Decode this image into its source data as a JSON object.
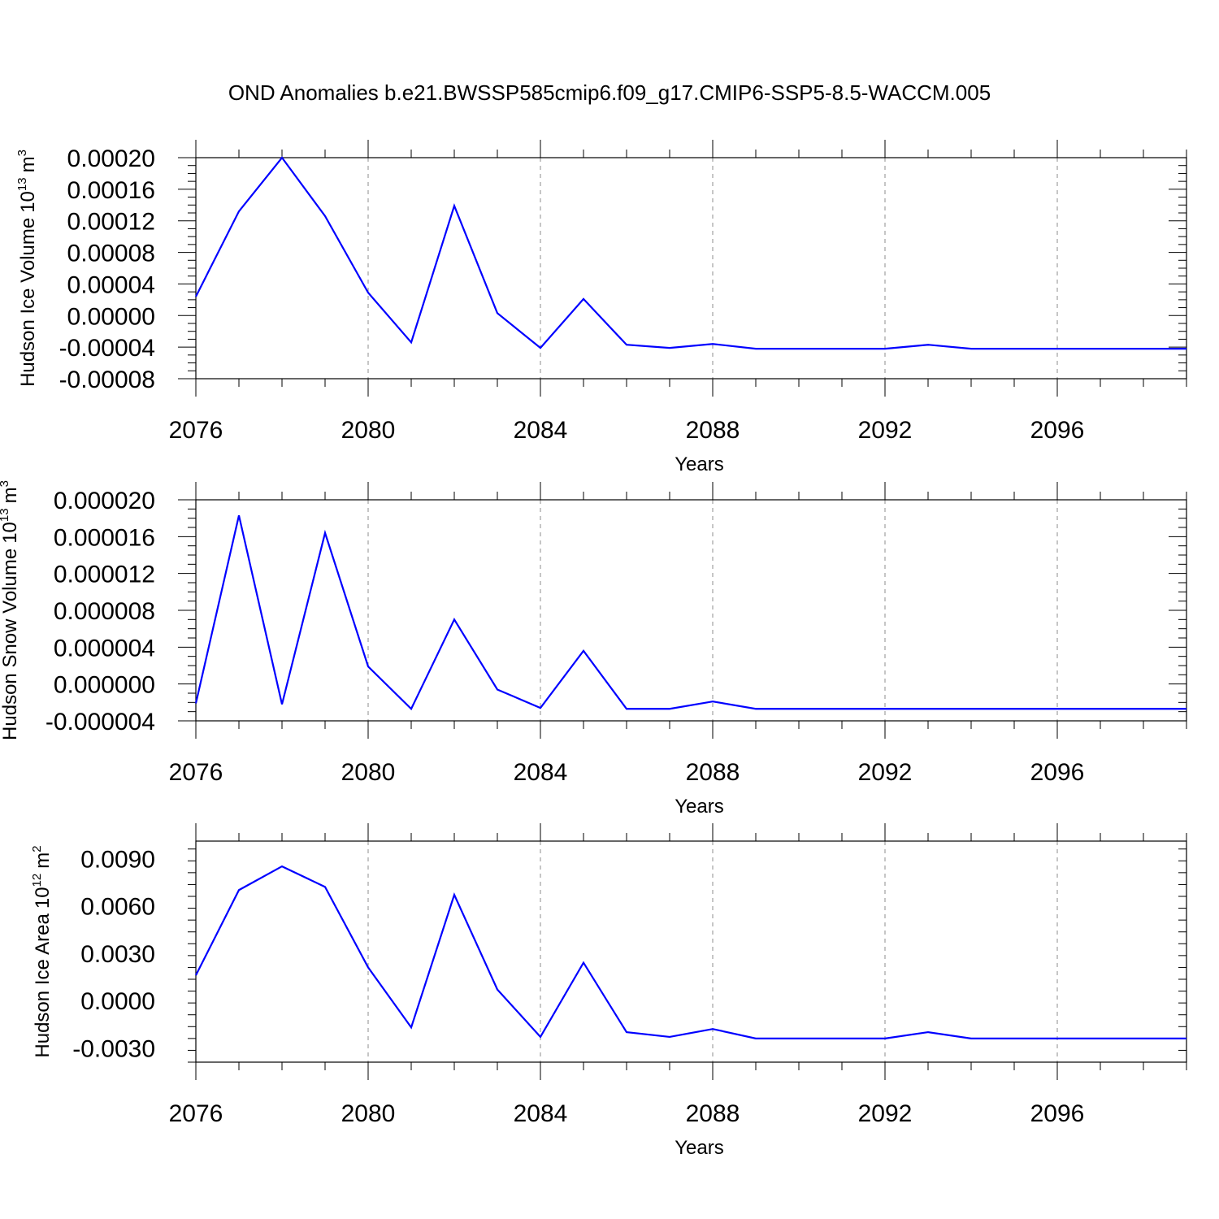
{
  "figure_title": "OND Anomalies b.e21.BWSSP585cmip6.f09_g17.CMIP6-SSP5-8.5-WACCM.005",
  "colors": {
    "line": "#0000ff",
    "frame": "#000000",
    "grid": "#8c8c8c"
  },
  "chart_data": [
    {
      "type": "line",
      "title": "",
      "xlabel": "Years",
      "ylabel": "Hudson Ice Volume",
      "ylabel_unit_base": "10",
      "ylabel_unit_exp": "13",
      "ylabel_unit_symbol": "m",
      "ylabel_unit_symbol_exp": "3",
      "xlim": [
        2076,
        2099
      ],
      "ylim": [
        -8e-05,
        0.0002
      ],
      "x_ticks": [
        2076,
        2080,
        2084,
        2088,
        2092,
        2096
      ],
      "x_tick_labels": [
        "2076",
        "2080",
        "2084",
        "2088",
        "2092",
        "2096"
      ],
      "y_ticks": [
        0.0002,
        0.00016,
        0.00012,
        8e-05,
        4e-05,
        0.0,
        -4e-05,
        -8e-05
      ],
      "y_tick_labels": [
        "0.00020",
        "0.00016",
        "0.00012",
        "0.00008",
        "0.00004",
        "0.00000",
        "-0.00004",
        "-0.00008"
      ],
      "grid": "vertical dashed at major x ticks",
      "series": [
        {
          "x": [
            2076,
            2077,
            2078,
            2079,
            2080,
            2081,
            2082,
            2083,
            2084,
            2085,
            2086,
            2087,
            2088,
            2089,
            2090,
            2091,
            2092,
            2093,
            2094,
            2095,
            2096,
            2097,
            2098,
            2099
          ],
          "values": [
            2.4e-05,
            0.000132,
            0.0002,
            0.000126,
            2.9e-05,
            -3.4e-05,
            0.000139,
            3e-06,
            -4.1e-05,
            2.1e-05,
            -3.7e-05,
            -4.1e-05,
            -3.6e-05,
            -4.2e-05,
            -4.2e-05,
            -4.2e-05,
            -4.2e-05,
            -3.7e-05,
            -4.2e-05,
            -4.2e-05,
            -4.2e-05,
            -4.2e-05,
            -4.2e-05,
            -4.2e-05
          ]
        }
      ]
    },
    {
      "type": "line",
      "title": "",
      "xlabel": "Years",
      "ylabel": "Hudson Snow Volume",
      "ylabel_unit_base": "10",
      "ylabel_unit_exp": "13",
      "ylabel_unit_symbol": "m",
      "ylabel_unit_symbol_exp": "3",
      "xlim": [
        2076,
        2099
      ],
      "ylim": [
        -4e-06,
        2e-05
      ],
      "x_ticks": [
        2076,
        2080,
        2084,
        2088,
        2092,
        2096
      ],
      "x_tick_labels": [
        "2076",
        "2080",
        "2084",
        "2088",
        "2092",
        "2096"
      ],
      "y_ticks": [
        2e-05,
        1.6e-05,
        1.2e-05,
        8e-06,
        4e-06,
        0.0,
        -4e-06
      ],
      "y_tick_labels": [
        "0.000020",
        "0.000016",
        "0.000012",
        "0.000008",
        "0.000004",
        "0.000000",
        "-0.000004"
      ],
      "grid": "vertical dashed at major x ticks",
      "series": [
        {
          "x": [
            2076,
            2077,
            2078,
            2079,
            2080,
            2081,
            2082,
            2083,
            2084,
            2085,
            2086,
            2087,
            2088,
            2089,
            2090,
            2091,
            2092,
            2093,
            2094,
            2095,
            2096,
            2097,
            2098,
            2099
          ],
          "values": [
            -2.1e-06,
            1.83e-05,
            -2.2e-06,
            1.64e-05,
            1.9e-06,
            -2.7e-06,
            7e-06,
            -6e-07,
            -2.6e-06,
            3.6e-06,
            -2.7e-06,
            -2.7e-06,
            -1.9e-06,
            -2.7e-06,
            -2.7e-06,
            -2.7e-06,
            -2.7e-06,
            -2.7e-06,
            -2.7e-06,
            -2.7e-06,
            -2.7e-06,
            -2.7e-06,
            -2.7e-06,
            -2.7e-06
          ]
        }
      ]
    },
    {
      "type": "line",
      "title": "",
      "xlabel": "Years",
      "ylabel": "Hudson Ice Area",
      "ylabel_unit_base": "10",
      "ylabel_unit_exp": "12",
      "ylabel_unit_symbol": "m",
      "ylabel_unit_symbol_exp": "2",
      "xlim": [
        2076,
        2099
      ],
      "ylim": [
        -0.0039,
        0.0101
      ],
      "x_ticks": [
        2076,
        2080,
        2084,
        2088,
        2092,
        2096
      ],
      "x_tick_labels": [
        "2076",
        "2080",
        "2084",
        "2088",
        "2092",
        "2096"
      ],
      "y_ticks": [
        0.009,
        0.006,
        0.003,
        0.0,
        -0.003
      ],
      "y_tick_labels": [
        "0.0090",
        "0.0060",
        "0.0030",
        "0.0000",
        "-0.0030"
      ],
      "grid": "vertical dashed at major x ticks",
      "series": [
        {
          "x": [
            2076,
            2077,
            2078,
            2079,
            2080,
            2081,
            2082,
            2083,
            2084,
            2085,
            2086,
            2087,
            2088,
            2089,
            2090,
            2091,
            2092,
            2093,
            2094,
            2095,
            2096,
            2097,
            2098,
            2099
          ],
          "values": [
            0.0016,
            0.007,
            0.0085,
            0.0072,
            0.0021,
            -0.0017,
            0.0067,
            0.0007,
            -0.0023,
            0.0024,
            -0.002,
            -0.0023,
            -0.0018,
            -0.0024,
            -0.0024,
            -0.0024,
            -0.0024,
            -0.002,
            -0.0024,
            -0.0024,
            -0.0024,
            -0.0024,
            -0.0024,
            -0.0024
          ]
        }
      ]
    }
  ]
}
